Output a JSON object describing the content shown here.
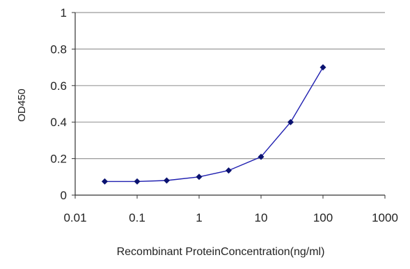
{
  "chart_data": {
    "type": "line",
    "title": "",
    "xlabel": "Recombinant ProteinConcentration(ng/ml)",
    "ylabel": "OD450",
    "x_scale": "log",
    "xlim": [
      0.01,
      1000
    ],
    "ylim": [
      0,
      1
    ],
    "x_ticks": [
      "0.01",
      "0.1",
      "1",
      "10",
      "100",
      "1000"
    ],
    "y_ticks": [
      "0",
      "0.2",
      "0.4",
      "0.6",
      "0.8",
      "1"
    ],
    "grid": "horizontal",
    "legend": "none",
    "series": [
      {
        "x": [
          0.03,
          0.1,
          0.3,
          1,
          3,
          10,
          30,
          100
        ],
        "y": [
          0.075,
          0.075,
          0.08,
          0.1,
          0.135,
          0.21,
          0.4,
          0.7
        ]
      }
    ],
    "colors": {
      "series": "#1f1fb0",
      "marker": "#0a1270",
      "grid": "#9a9a9a",
      "axis": "#333333"
    }
  }
}
